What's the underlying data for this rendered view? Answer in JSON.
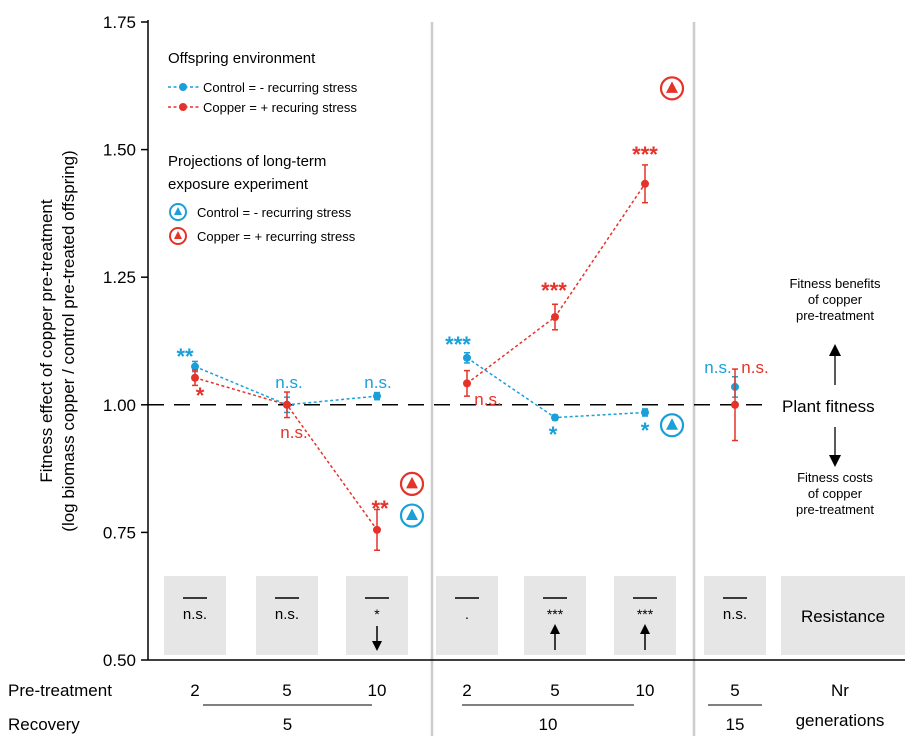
{
  "chart_data": {
    "type": "line",
    "ylabel_line1": "Fitness effect of copper pre-treatment",
    "ylabel_line2": "(log biomass copper / control pre-treated offspring)",
    "ylim": [
      0.5,
      1.75
    ],
    "yticks": [
      "0.50",
      "0.75",
      "1.00",
      "1.25",
      "1.50",
      "1.75"
    ],
    "colors": {
      "control": "#1a9fd9",
      "copper": "#e5332a"
    },
    "legend": {
      "title1": "Offspring environment",
      "control": "Control = - recurring stress",
      "copper": "Copper = + recuring stress",
      "title2_line1": "Projections of long-term",
      "title2_line2": "exposure experiment",
      "proj_control": "Control  = - recurring stress",
      "proj_copper": "Copper  = + recurring stress"
    },
    "groups": [
      {
        "recovery": "5",
        "pretreatment": [
          "2",
          "5",
          "10"
        ],
        "control": [
          {
            "y": 1.075,
            "err": 0.01,
            "sig": "**"
          },
          {
            "y": 1.0,
            "err": 0.015,
            "sig": "n.s."
          },
          {
            "y": 1.017,
            "err": 0.007,
            "sig": "n.s."
          }
        ],
        "copper": [
          {
            "y": 1.053,
            "err": 0.015,
            "sig": "*"
          },
          {
            "y": 1.0,
            "err": 0.025,
            "sig": "n.s."
          },
          {
            "y": 0.755,
            "err": 0.04,
            "sig": "**"
          }
        ],
        "projection": {
          "copper": 0.845,
          "control": 0.783
        }
      },
      {
        "recovery": "10",
        "pretreatment": [
          "2",
          "5",
          "10"
        ],
        "control": [
          {
            "y": 1.092,
            "err": 0.01,
            "sig": "***"
          },
          {
            "y": 0.975,
            "err": 0.005,
            "sig": "*"
          },
          {
            "y": 0.985,
            "err": 0.007,
            "sig": "*"
          }
        ],
        "copper": [
          {
            "y": 1.042,
            "err": 0.025,
            "sig": "n.s."
          },
          {
            "y": 1.172,
            "err": 0.025,
            "sig": "***"
          },
          {
            "y": 1.433,
            "err": 0.037,
            "sig": "***"
          }
        ],
        "projection": {
          "copper": 1.62,
          "control": 0.96
        }
      },
      {
        "recovery": "15",
        "pretreatment": [
          "5"
        ],
        "control": [
          {
            "y": 1.035,
            "err": 0.02,
            "sig": "n.s."
          }
        ],
        "copper": [
          {
            "y": 1.0,
            "err": 0.07,
            "sig": "n.s."
          }
        ],
        "projection": null
      }
    ],
    "plant_fitness_label": "Plant fitness",
    "benefit_label": [
      "Fitness benefits",
      "of copper",
      "pre-treatment"
    ],
    "cost_label": [
      "Fitness costs",
      "of copper",
      "pre-treatment"
    ],
    "resistance_label": "Resistance",
    "resistance": [
      {
        "text": "n.s.",
        "arrow": ""
      },
      {
        "text": "n.s.",
        "arrow": ""
      },
      {
        "text": "*",
        "arrow": "down"
      },
      {
        "text": ".",
        "arrow": ""
      },
      {
        "text": "***",
        "arrow": "up"
      },
      {
        "text": "***",
        "arrow": "up"
      },
      {
        "text": "n.s.",
        "arrow": ""
      }
    ],
    "xaxis": {
      "pretreatment_label": "Pre-treatment",
      "recovery_label": "Recovery",
      "nr_label": "Nr",
      "generations_label": "generations"
    }
  }
}
